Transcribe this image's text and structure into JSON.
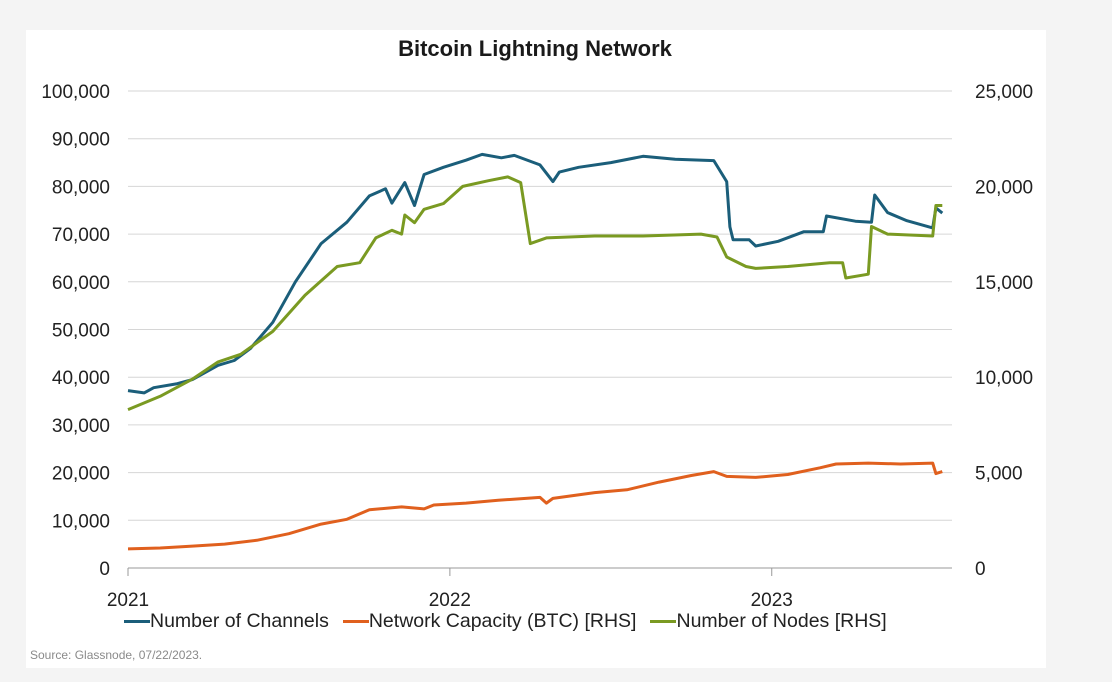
{
  "title": "Bitcoin Lightning Network",
  "source": "Source: Glassnode, 07/22/2023.",
  "chart_data": {
    "type": "line",
    "title": "Bitcoin Lightning Network",
    "xlabel": "",
    "ylabel": "",
    "x_ticks": [
      "2021",
      "2022",
      "2023"
    ],
    "x_range": [
      2021.0,
      2023.56
    ],
    "y_left": {
      "ticks": [
        "0",
        "10,000",
        "20,000",
        "30,000",
        "40,000",
        "50,000",
        "60,000",
        "70,000",
        "80,000",
        "90,000",
        "100,000"
      ],
      "range": [
        0,
        100000
      ]
    },
    "y_right": {
      "ticks": [
        "0",
        "5,000",
        "10,000",
        "15,000",
        "20,000",
        "25,000"
      ],
      "range": [
        0,
        25000
      ]
    },
    "grid": "horizontal",
    "legend_position": "bottom",
    "series": [
      {
        "name": "Number of Channels",
        "axis": "left",
        "color": "#1b5e7a",
        "points": [
          [
            2021.0,
            37200
          ],
          [
            2021.05,
            36700
          ],
          [
            2021.08,
            37800
          ],
          [
            2021.15,
            38600
          ],
          [
            2021.2,
            39500
          ],
          [
            2021.28,
            42500
          ],
          [
            2021.33,
            43500
          ],
          [
            2021.38,
            46000
          ],
          [
            2021.45,
            51500
          ],
          [
            2021.52,
            60000
          ],
          [
            2021.6,
            68000
          ],
          [
            2021.68,
            72500
          ],
          [
            2021.75,
            78000
          ],
          [
            2021.8,
            79500
          ],
          [
            2021.82,
            76500
          ],
          [
            2021.86,
            80800
          ],
          [
            2021.89,
            76000
          ],
          [
            2021.92,
            82500
          ],
          [
            2021.98,
            84000
          ],
          [
            2022.05,
            85500
          ],
          [
            2022.1,
            86700
          ],
          [
            2022.16,
            86000
          ],
          [
            2022.2,
            86500
          ],
          [
            2022.28,
            84500
          ],
          [
            2022.32,
            81000
          ],
          [
            2022.34,
            83000
          ],
          [
            2022.4,
            84000
          ],
          [
            2022.5,
            85000
          ],
          [
            2022.6,
            86300
          ],
          [
            2022.7,
            85700
          ],
          [
            2022.82,
            85400
          ],
          [
            2022.86,
            81000
          ],
          [
            2022.87,
            71500
          ],
          [
            2022.88,
            68800
          ],
          [
            2022.93,
            68800
          ],
          [
            2022.95,
            67500
          ],
          [
            2023.02,
            68500
          ],
          [
            2023.1,
            70500
          ],
          [
            2023.16,
            70500
          ],
          [
            2023.17,
            73800
          ],
          [
            2023.26,
            72700
          ],
          [
            2023.31,
            72500
          ],
          [
            2023.32,
            78200
          ],
          [
            2023.36,
            74500
          ],
          [
            2023.42,
            72800
          ],
          [
            2023.5,
            71300
          ],
          [
            2023.51,
            75500
          ],
          [
            2023.53,
            74400
          ]
        ]
      },
      {
        "name": "Network Capacity (BTC) [RHS]",
        "axis": "right",
        "color": "#e0601e",
        "points": [
          [
            2021.0,
            1000
          ],
          [
            2021.1,
            1050
          ],
          [
            2021.2,
            1150
          ],
          [
            2021.3,
            1250
          ],
          [
            2021.4,
            1450
          ],
          [
            2021.5,
            1800
          ],
          [
            2021.6,
            2300
          ],
          [
            2021.68,
            2550
          ],
          [
            2021.75,
            3050
          ],
          [
            2021.85,
            3200
          ],
          [
            2021.92,
            3100
          ],
          [
            2021.95,
            3300
          ],
          [
            2022.05,
            3400
          ],
          [
            2022.15,
            3550
          ],
          [
            2022.28,
            3700
          ],
          [
            2022.3,
            3400
          ],
          [
            2022.32,
            3650
          ],
          [
            2022.45,
            3950
          ],
          [
            2022.55,
            4100
          ],
          [
            2022.65,
            4500
          ],
          [
            2022.75,
            4850
          ],
          [
            2022.82,
            5050
          ],
          [
            2022.86,
            4800
          ],
          [
            2022.95,
            4750
          ],
          [
            2023.05,
            4900
          ],
          [
            2023.15,
            5250
          ],
          [
            2023.2,
            5450
          ],
          [
            2023.3,
            5500
          ],
          [
            2023.4,
            5450
          ],
          [
            2023.5,
            5500
          ],
          [
            2023.51,
            4950
          ],
          [
            2023.53,
            5050
          ]
        ]
      },
      {
        "name": "Number of Nodes [RHS]",
        "axis": "right",
        "color": "#7a9a22",
        "points": [
          [
            2021.0,
            8300
          ],
          [
            2021.1,
            9000
          ],
          [
            2021.2,
            9900
          ],
          [
            2021.28,
            10800
          ],
          [
            2021.35,
            11200
          ],
          [
            2021.45,
            12400
          ],
          [
            2021.55,
            14300
          ],
          [
            2021.65,
            15800
          ],
          [
            2021.72,
            16000
          ],
          [
            2021.77,
            17300
          ],
          [
            2021.82,
            17700
          ],
          [
            2021.85,
            17500
          ],
          [
            2021.86,
            18500
          ],
          [
            2021.89,
            18100
          ],
          [
            2021.92,
            18800
          ],
          [
            2021.98,
            19100
          ],
          [
            2022.04,
            20000
          ],
          [
            2022.12,
            20300
          ],
          [
            2022.18,
            20500
          ],
          [
            2022.22,
            20200
          ],
          [
            2022.25,
            17000
          ],
          [
            2022.3,
            17300
          ],
          [
            2022.45,
            17400
          ],
          [
            2022.6,
            17400
          ],
          [
            2022.78,
            17500
          ],
          [
            2022.83,
            17350
          ],
          [
            2022.86,
            16300
          ],
          [
            2022.92,
            15800
          ],
          [
            2022.95,
            15700
          ],
          [
            2023.05,
            15800
          ],
          [
            2023.18,
            16000
          ],
          [
            2023.22,
            16000
          ],
          [
            2023.23,
            15200
          ],
          [
            2023.3,
            15400
          ],
          [
            2023.31,
            17900
          ],
          [
            2023.36,
            17500
          ],
          [
            2023.5,
            17400
          ],
          [
            2023.51,
            19000
          ],
          [
            2023.53,
            19000
          ]
        ]
      }
    ]
  }
}
